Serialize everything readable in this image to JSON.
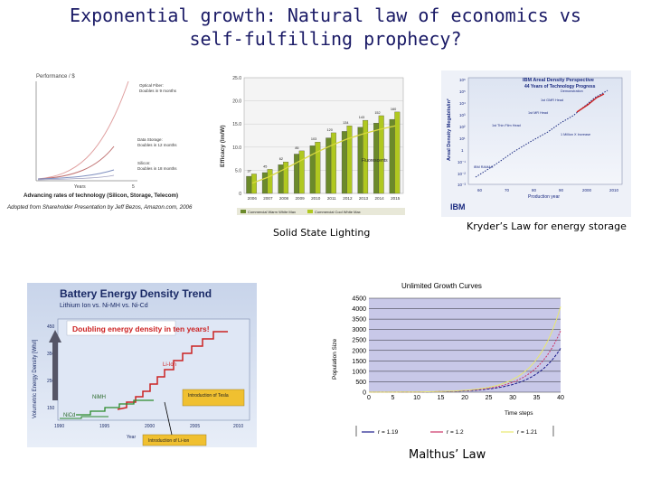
{
  "slide": {
    "title_line1": "Exponential growth: Natural law of economics vs",
    "title_line2": "self-fulfilling prophecy?",
    "caption_solid_state": "Solid State Lighting",
    "caption_kryder": "Kryder’s Law for energy storage",
    "caption_malthus": "Malthus’ Law"
  },
  "panel_tech": {
    "ylabel": "Performance / $",
    "xlabel": "Years",
    "x_tick": "5",
    "label_optical": "Optical Fiber:",
    "label_optical_2": "Doubles in 9 months",
    "label_storage": "Data Storage:",
    "label_storage_2": "Doubles in 12 months",
    "label_silicon": "Silicon:",
    "label_silicon_2": "Doubles in 18 months",
    "caption": "Advancing rates of technology (Silicon, Storage, Telecom)",
    "source": "Adopted from Shareholder Presentation by Jeff Bezos, Amazon.com, 2006"
  },
  "chart_data": [
    {
      "type": "bar",
      "ylabel": "Efficacy (lm/W)",
      "categories": [
        "2006",
        "2007",
        "2008",
        "2009",
        "2010",
        "2011",
        "2012",
        "2013",
        "2014",
        "2015"
      ],
      "y_ticks": [
        "0",
        "5.0",
        "10.0",
        "15.0",
        "20.0",
        "25.0"
      ],
      "ylim": [
        0,
        250
      ],
      "series": [
        {
          "name": "Commercial Warm White Max",
          "values": [
            37,
            45,
            62,
            85,
            103,
            120,
            134,
            143,
            152,
            160
          ]
        },
        {
          "name": "Commercial Cool White Max",
          "values": [
            42,
            52,
            68,
            92,
            111,
            131,
            146,
            158,
            168,
            176
          ]
        }
      ],
      "trend": [
        22,
        35,
        52,
        70,
        88,
        104,
        118,
        129,
        138,
        146
      ],
      "annotation": "Fluorescents",
      "bar_labels": [
        "37",
        "45",
        "62",
        "85",
        "103",
        "120",
        "134",
        "143",
        "152",
        "160"
      ]
    },
    {
      "type": "line",
      "title": "IBM Areal Density Perspective",
      "subtitle": "44 Years of Technology Progress",
      "xlabel": "Production year",
      "ylabel": "Areal Density Megabits/in²",
      "x_ticks": [
        "60",
        "70",
        "80",
        "90",
        "2000",
        "2010"
      ],
      "y_ticks": [
        "10⁶",
        "10⁵",
        "10⁴",
        "10³",
        "10²",
        "10¹",
        "1",
        "10⁻¹",
        "10⁻²",
        "10⁻³"
      ],
      "notes": [
        "Demonstration",
        "1st GMR Head",
        "1st MR Head",
        "1st Thin Film Head",
        "1 Million X Increase",
        "IBM RAMAC"
      ],
      "brand": "IBM"
    },
    {
      "type": "line",
      "title": "Battery Energy Density Trend",
      "subtitle": "Lithium Ion vs. Ni-MH vs. Ni-Cd",
      "banner": "Doubling energy density in ten years!",
      "ylabel": "Volumetric Energy Density [Wh/l]",
      "xlabel": "Year",
      "x_ticks": [
        "1990",
        "1995",
        "2000",
        "2005",
        "2010"
      ],
      "y_ticks": [
        "150",
        "250",
        "350",
        "450"
      ],
      "labels": [
        "Li-Ion",
        "NiMH",
        "NiCd",
        "Introduction of Li-ion",
        "Introduction of Tesla"
      ],
      "step_values": [
        200,
        220,
        240,
        260,
        280,
        300,
        330,
        360,
        420,
        480
      ]
    },
    {
      "type": "line",
      "title": "Unlimited Growth Curves",
      "xlabel": "Time steps",
      "ylabel": "Population Size",
      "x": [
        0,
        5,
        10,
        15,
        20,
        25,
        30,
        35,
        40
      ],
      "xlim": [
        0,
        40
      ],
      "ylim": [
        0,
        4500
      ],
      "y_ticks": [
        0,
        500,
        1000,
        1500,
        2000,
        2500,
        3000,
        3500,
        4000,
        4500
      ],
      "series": [
        {
          "name": "r = 1.19",
          "color": "#1a1a8c",
          "r": 1.19
        },
        {
          "name": "r = 1.2",
          "color": "#cc3366",
          "r": 1.2
        },
        {
          "name": "r = 1.21",
          "color": "#e8e870",
          "r": 1.21
        }
      ]
    }
  ]
}
